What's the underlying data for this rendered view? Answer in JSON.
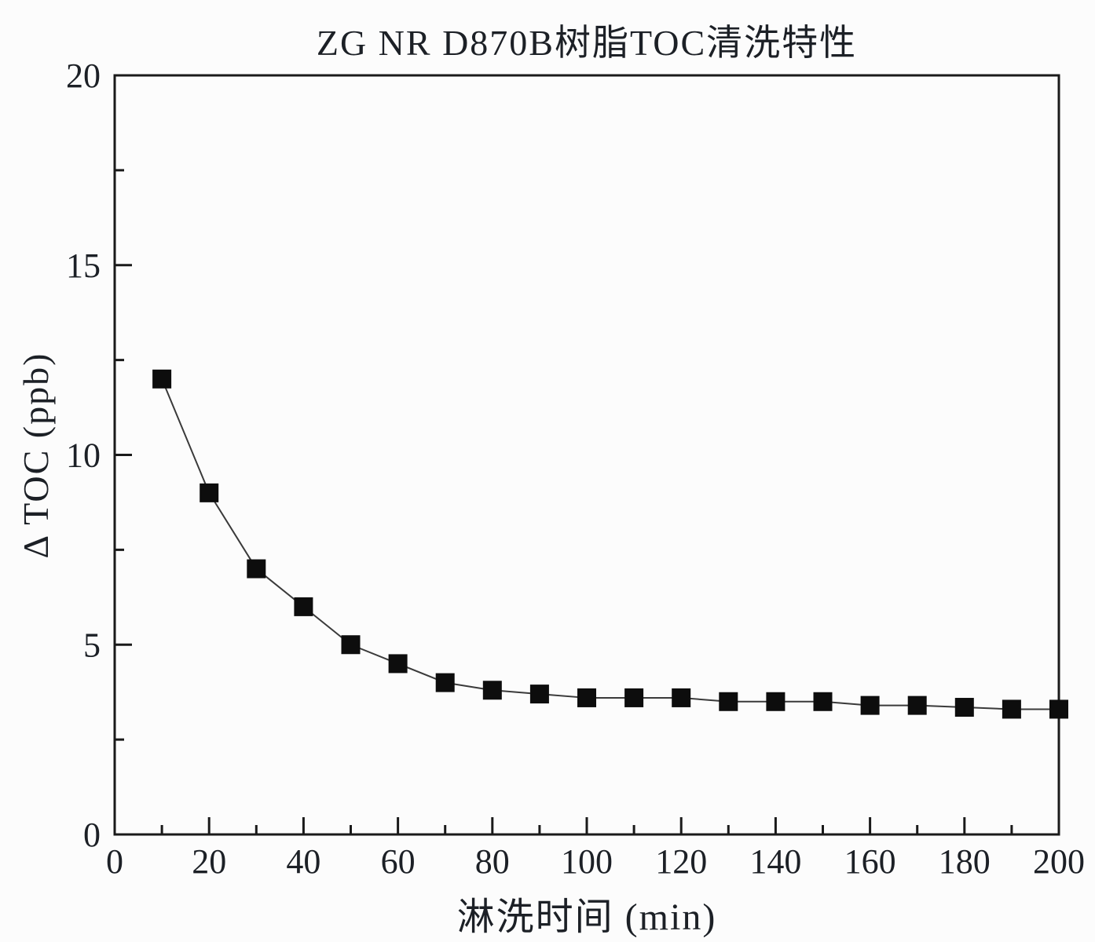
{
  "chart_data": {
    "type": "line",
    "title": "ZG NR D870B树脂TOC清洗特性",
    "xlabel": "淋洗时间 (min)",
    "ylabel": "Δ TOC (ppb)",
    "series_name": "ΔTOC",
    "x": [
      10,
      20,
      30,
      40,
      50,
      60,
      70,
      80,
      90,
      100,
      110,
      120,
      130,
      140,
      150,
      160,
      170,
      180,
      190,
      200
    ],
    "values": [
      12,
      9,
      7,
      6,
      5,
      4.5,
      4,
      3.8,
      3.7,
      3.6,
      3.6,
      3.6,
      3.5,
      3.5,
      3.5,
      3.4,
      3.4,
      3.35,
      3.3,
      3.3
    ],
    "xlim": [
      0,
      200
    ],
    "ylim": [
      0,
      20
    ],
    "xticks": {
      "major": [
        0,
        20,
        40,
        60,
        80,
        100,
        120,
        140,
        160,
        180,
        200
      ],
      "minor": [
        10,
        30,
        50,
        70,
        90,
        110,
        130,
        150,
        170,
        190
      ]
    },
    "yticks": {
      "major": [
        0,
        5,
        10,
        15,
        20
      ],
      "minor": [
        2.5,
        7.5,
        12.5,
        17.5
      ]
    },
    "grid": false,
    "legend": "none",
    "marker": "filled-square",
    "colors": {
      "line": "#3a3a3a",
      "marker": "#0d0d0d",
      "axis": "#1a1a1a",
      "text": "#1c2026",
      "background": "#fcfcfc"
    }
  }
}
